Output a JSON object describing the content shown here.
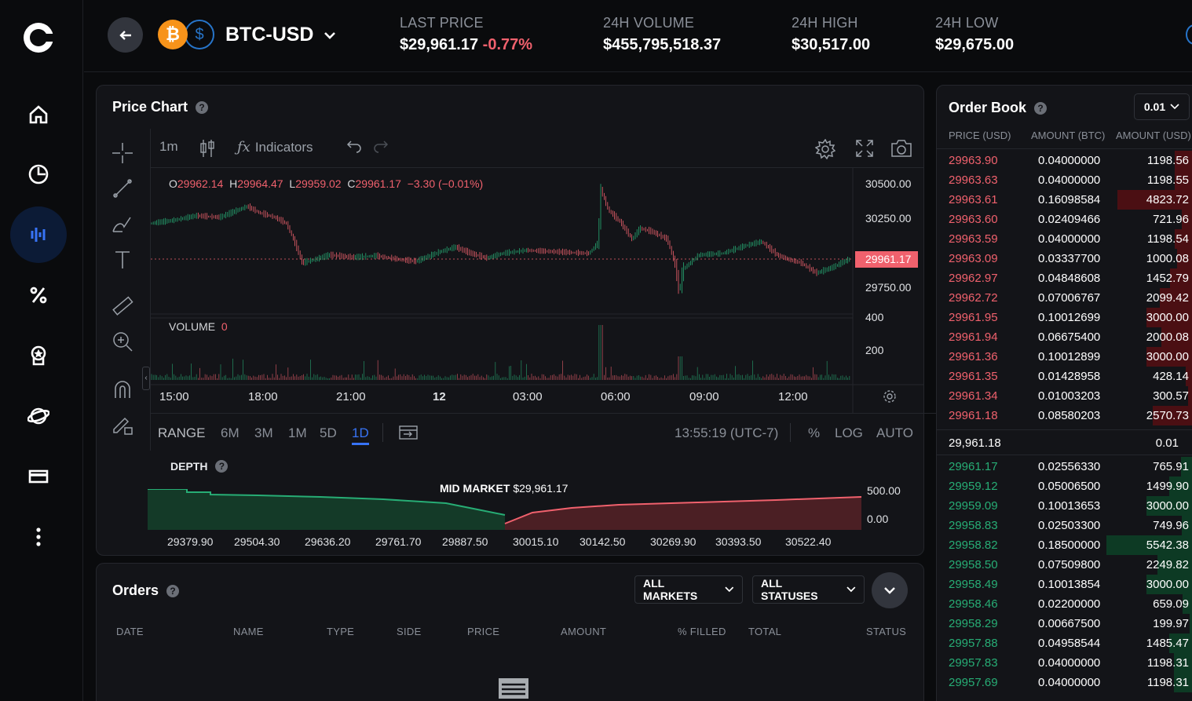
{
  "header": {
    "pair": "BTC-USD",
    "btc_glyph": "₿",
    "usd_glyph": "$",
    "stats": [
      {
        "label": "LAST PRICE",
        "value": "$29,961.17",
        "change": "-0.77%"
      },
      {
        "label": "24H VOLUME",
        "value": "$455,795,518.37"
      },
      {
        "label": "24H HIGH",
        "value": "$30,517.00"
      },
      {
        "label": "24H LOW",
        "value": "$29,675.00"
      }
    ]
  },
  "sidebar": {
    "items": [
      "home-icon",
      "portfolio-pie-icon",
      "trade-chart-icon",
      "percent-icon",
      "rewards-icon",
      "learn-icon",
      "card-icon",
      "more-icon"
    ],
    "active_index": 2
  },
  "price_chart": {
    "title": "Price Chart",
    "help": "?",
    "toolbar": {
      "interval": "1m",
      "indicators": "Indicators",
      "indicator_glyph": "ƒx"
    },
    "ohlc": {
      "o_label": "O",
      "o": "29962.14",
      "h_label": "H",
      "h": "29964.47",
      "l_label": "L",
      "l": "29959.02",
      "c_label": "C",
      "c": "29961.17",
      "change": "−3.30 (−0.01%)"
    },
    "price_ticks": [
      "30500.00",
      "30250.00",
      "29750.00"
    ],
    "current_price": "29961.17",
    "volume_label": "VOLUME",
    "volume_value": "0",
    "volume_ticks": [
      "400",
      "200"
    ],
    "time_ticks": [
      "15:00",
      "18:00",
      "21:00",
      "12",
      "03:00",
      "06:00",
      "09:00",
      "12:00"
    ],
    "range_label": "RANGE",
    "ranges": [
      "6M",
      "3M",
      "1M",
      "5D",
      "1D"
    ],
    "selected_range": "1D",
    "clock": "13:55:19 (UTC-7)",
    "scale_options": [
      "%",
      "LOG",
      "AUTO"
    ]
  },
  "depth": {
    "title": "DEPTH",
    "help": "?",
    "mid_label": "MID MARKET",
    "mid_value": "$29,961.17",
    "y_ticks": [
      "500.00",
      "0.00"
    ],
    "x_ticks": [
      "29379.90",
      "29504.30",
      "29636.20",
      "29761.70",
      "29887.50",
      "30015.10",
      "30142.50",
      "30269.90",
      "30393.50",
      "30522.40"
    ]
  },
  "orders": {
    "title": "Orders",
    "help": "?",
    "filter_markets": "ALL MARKETS",
    "filter_statuses": "ALL STATUSES",
    "columns": [
      "DATE",
      "NAME",
      "TYPE",
      "SIDE",
      "PRICE",
      "AMOUNT",
      "% FILLED",
      "TOTAL",
      "STATUS"
    ]
  },
  "order_book": {
    "title": "Order Book",
    "help": "?",
    "size": "0.01",
    "columns": [
      "PRICE (USD)",
      "AMOUNT (BTC)",
      "AMOUNT (USD)"
    ],
    "asks": [
      {
        "price": "29963.90",
        "amount": "0.04000000",
        "usd": "1198.56",
        "depth": 0.21
      },
      {
        "price": "29963.63",
        "amount": "0.04000000",
        "usd": "1198.55",
        "depth": 0.21
      },
      {
        "price": "29963.61",
        "amount": "0.16098584",
        "usd": "4823.72",
        "depth": 0.87
      },
      {
        "price": "29963.60",
        "amount": "0.02409466",
        "usd": "721.96",
        "depth": 0.13
      },
      {
        "price": "29963.59",
        "amount": "0.04000000",
        "usd": "1198.54",
        "depth": 0.21
      },
      {
        "price": "29963.09",
        "amount": "0.03337700",
        "usd": "1000.08",
        "depth": 0.18
      },
      {
        "price": "29962.97",
        "amount": "0.04848608",
        "usd": "1452.79",
        "depth": 0.26
      },
      {
        "price": "29962.72",
        "amount": "0.07006767",
        "usd": "2099.42",
        "depth": 0.38
      },
      {
        "price": "29961.95",
        "amount": "0.10012699",
        "usd": "3000.00",
        "depth": 0.54
      },
      {
        "price": "29961.94",
        "amount": "0.06675400",
        "usd": "2000.08",
        "depth": 0.36
      },
      {
        "price": "29961.36",
        "amount": "0.10012899",
        "usd": "3000.00",
        "depth": 0.54
      },
      {
        "price": "29961.35",
        "amount": "0.01428958",
        "usd": "428.14",
        "depth": 0.08
      },
      {
        "price": "29961.34",
        "amount": "0.01003203",
        "usd": "300.57",
        "depth": 0.05
      },
      {
        "price": "29961.18",
        "amount": "0.08580203",
        "usd": "2570.73",
        "depth": 0.46
      }
    ],
    "spread_price": "29,961.18",
    "spread_value": "0.01",
    "bids": [
      {
        "price": "29961.17",
        "amount": "0.02556330",
        "usd": "765.91",
        "depth": 0.14
      },
      {
        "price": "29959.12",
        "amount": "0.05006500",
        "usd": "1499.90",
        "depth": 0.27
      },
      {
        "price": "29959.09",
        "amount": "0.10013653",
        "usd": "3000.00",
        "depth": 0.54
      },
      {
        "price": "29958.83",
        "amount": "0.02503300",
        "usd": "749.96",
        "depth": 0.13
      },
      {
        "price": "29958.82",
        "amount": "0.18500000",
        "usd": "5542.38",
        "depth": 1.0
      },
      {
        "price": "29958.50",
        "amount": "0.07509800",
        "usd": "2249.82",
        "depth": 0.41
      },
      {
        "price": "29958.49",
        "amount": "0.10013854",
        "usd": "3000.00",
        "depth": 0.54
      },
      {
        "price": "29958.46",
        "amount": "0.02200000",
        "usd": "659.09",
        "depth": 0.12
      },
      {
        "price": "29958.29",
        "amount": "0.00667500",
        "usd": "199.97",
        "depth": 0.04
      },
      {
        "price": "29957.88",
        "amount": "0.04958544",
        "usd": "1485.47",
        "depth": 0.27
      },
      {
        "price": "29957.83",
        "amount": "0.04000000",
        "usd": "1198.31",
        "depth": 0.22
      },
      {
        "price": "29957.69",
        "amount": "0.04000000",
        "usd": "1198.31",
        "depth": 0.22
      }
    ]
  },
  "colors": {
    "accent": "#3773f5",
    "up": "#27ad75",
    "down": "#f0616d",
    "btc": "#f7931a",
    "usdc": "#2775ca"
  }
}
